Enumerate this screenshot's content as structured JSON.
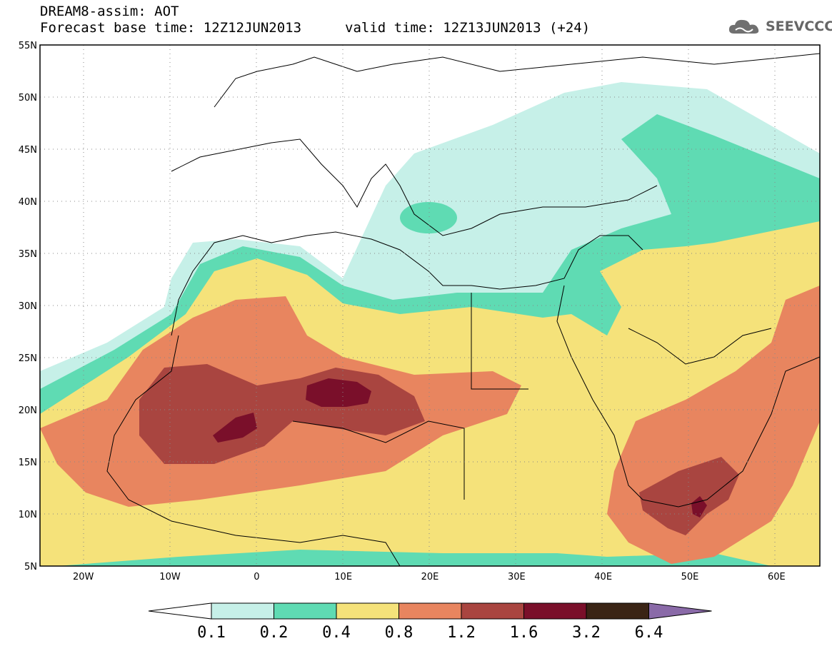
{
  "header": {
    "model_line": "DREAM8-assim: AOT",
    "base_time": "Forecast base time: 12Z12JUN2013",
    "valid_time": "valid time: 12Z13JUN2013 (+24)"
  },
  "logo": {
    "text": "SEEVCCC",
    "icon": "cloud-logo-icon"
  },
  "map": {
    "lat_labels": [
      "55N",
      "50N",
      "45N",
      "40N",
      "35N",
      "30N",
      "25N",
      "20N",
      "15N",
      "10N",
      "5N"
    ],
    "lon_labels": [
      "20W",
      "10W",
      "0",
      "10E",
      "20E",
      "30E",
      "40E",
      "50E",
      "60E"
    ],
    "lat_range": [
      5,
      55
    ],
    "lon_range": [
      -25,
      65
    ],
    "grid": "dotted"
  },
  "colorbar": {
    "labels": [
      "0.1",
      "0.2",
      "0.4",
      "0.8",
      "1.2",
      "1.6",
      "3.2",
      "6.4"
    ],
    "colors": [
      "#ffffff",
      "#c6f0e8",
      "#5fdbb3",
      "#f5e27a",
      "#e8855f",
      "#a94540",
      "#7a0f2a",
      "#3a2415",
      "#8a6aa8"
    ]
  },
  "colors": {
    "c01": "#c6f0e8",
    "c02": "#5fdbb3",
    "c04": "#f5e27a",
    "c08": "#e8855f",
    "c12": "#a94540",
    "c16": "#7a0f2a"
  }
}
